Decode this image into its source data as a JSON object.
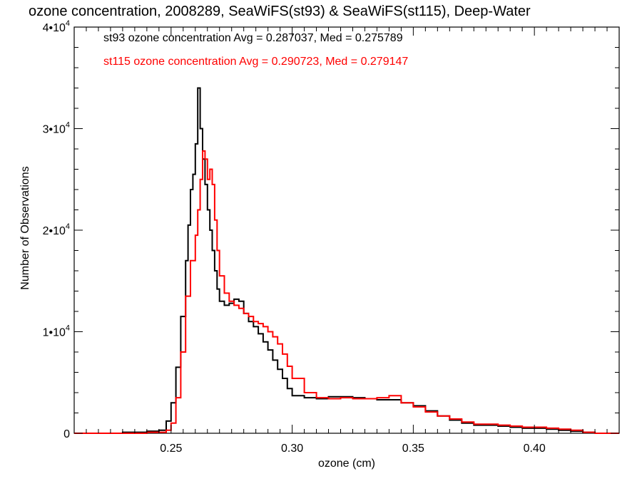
{
  "chart_data": {
    "type": "line",
    "title": "ozone concentration, 2008289, SeaWiFS(st93) & SeaWiFS(st115), Deep-Water",
    "xlabel": "ozone (cm)",
    "ylabel": "Number of Observations",
    "xlim": [
      0.21,
      0.435
    ],
    "ylim": [
      0,
      40000
    ],
    "x_ticks": [
      {
        "value": 0.25,
        "label": "0.25"
      },
      {
        "value": 0.3,
        "label": "0.30"
      },
      {
        "value": 0.35,
        "label": "0.35"
      },
      {
        "value": 0.4,
        "label": "0.40"
      }
    ],
    "y_ticks": [
      {
        "value": 0,
        "label": "0"
      },
      {
        "value": 10000,
        "mantissa": "1•10",
        "exp": "4"
      },
      {
        "value": 20000,
        "mantissa": "2•10",
        "exp": "4"
      },
      {
        "value": 30000,
        "mantissa": "3•10",
        "exp": "4"
      },
      {
        "value": 40000,
        "mantissa": "4•10",
        "exp": "4"
      }
    ],
    "grid": false,
    "legend_position": "top-left",
    "annotations": [
      {
        "text": "st93 ozone concentration Avg = 0.287037, Med = 0.275789",
        "color": "#000000"
      },
      {
        "text": "st115 ozone concentration Avg = 0.290723, Med = 0.279147",
        "color": "#ff0000"
      }
    ],
    "series": [
      {
        "color": "#000000",
        "x": [
          0.21,
          0.22,
          0.23,
          0.24,
          0.245,
          0.248,
          0.25,
          0.252,
          0.254,
          0.256,
          0.257,
          0.258,
          0.259,
          0.26,
          0.261,
          0.262,
          0.263,
          0.264,
          0.265,
          0.266,
          0.267,
          0.268,
          0.269,
          0.27,
          0.272,
          0.274,
          0.276,
          0.278,
          0.28,
          0.282,
          0.284,
          0.286,
          0.288,
          0.29,
          0.292,
          0.294,
          0.296,
          0.298,
          0.3,
          0.305,
          0.31,
          0.315,
          0.32,
          0.325,
          0.33,
          0.335,
          0.34,
          0.345,
          0.35,
          0.355,
          0.36,
          0.365,
          0.37,
          0.375,
          0.38,
          0.385,
          0.39,
          0.395,
          0.4,
          0.405,
          0.41,
          0.415,
          0.42,
          0.425,
          0.43,
          0.435
        ],
        "y": [
          0,
          0,
          100,
          200,
          300,
          1200,
          3000,
          6500,
          11500,
          17000,
          20500,
          24000,
          25500,
          28500,
          34000,
          30000,
          27000,
          24500,
          22000,
          20000,
          18000,
          16000,
          14200,
          13000,
          12600,
          12800,
          13200,
          13000,
          11800,
          11000,
          10500,
          9800,
          9000,
          8200,
          7200,
          6300,
          5400,
          4400,
          3700,
          3500,
          3400,
          3600,
          3600,
          3500,
          3400,
          3300,
          3300,
          3000,
          2700,
          2200,
          1700,
          1300,
          1000,
          800,
          800,
          700,
          600,
          500,
          500,
          400,
          300,
          200,
          100,
          0,
          0,
          0
        ]
      },
      {
        "color": "#ff0000",
        "x": [
          0.21,
          0.22,
          0.23,
          0.24,
          0.245,
          0.248,
          0.25,
          0.252,
          0.254,
          0.256,
          0.258,
          0.26,
          0.261,
          0.262,
          0.263,
          0.264,
          0.265,
          0.266,
          0.267,
          0.268,
          0.269,
          0.27,
          0.272,
          0.274,
          0.276,
          0.278,
          0.28,
          0.282,
          0.284,
          0.286,
          0.288,
          0.29,
          0.292,
          0.294,
          0.296,
          0.298,
          0.3,
          0.305,
          0.31,
          0.315,
          0.32,
          0.325,
          0.33,
          0.335,
          0.34,
          0.345,
          0.35,
          0.355,
          0.36,
          0.365,
          0.37,
          0.375,
          0.38,
          0.385,
          0.39,
          0.395,
          0.4,
          0.405,
          0.41,
          0.415,
          0.42,
          0.425,
          0.43,
          0.435
        ],
        "y": [
          0,
          0,
          0,
          100,
          100,
          300,
          1000,
          3500,
          8000,
          13500,
          17000,
          19500,
          22000,
          25000,
          27800,
          27000,
          25000,
          26000,
          24500,
          21000,
          18000,
          15500,
          13800,
          13000,
          12600,
          12300,
          11800,
          11500,
          11000,
          10800,
          10500,
          10000,
          9500,
          8800,
          7800,
          6600,
          5400,
          4000,
          3500,
          3400,
          3500,
          3400,
          3400,
          3500,
          3700,
          3000,
          2600,
          2100,
          1700,
          1400,
          1100,
          900,
          900,
          800,
          700,
          600,
          600,
          500,
          400,
          300,
          100,
          0,
          0,
          0
        ]
      }
    ]
  }
}
